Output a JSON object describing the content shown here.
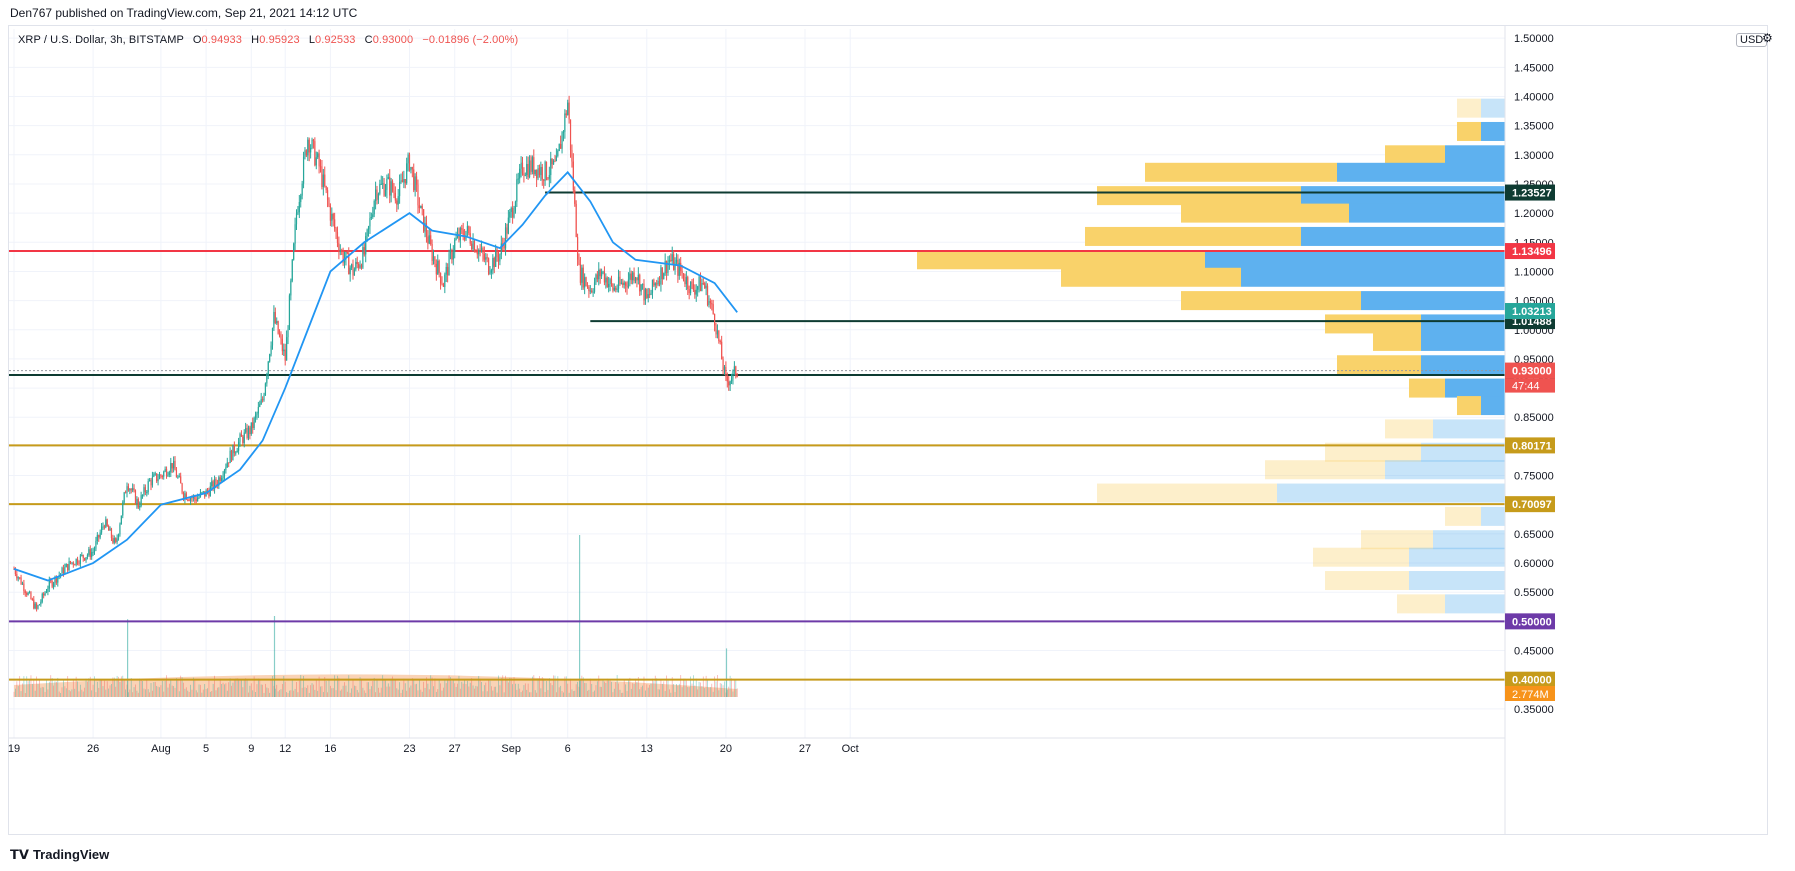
{
  "header": "Den767 published on TradingView.com, Sep 21, 2021 14:12 UTC",
  "legend": {
    "symbol": "XRP / U.S. Dollar, 3h, BITSTAMP",
    "open": "0.94933",
    "high": "0.95923",
    "low": "0.92533",
    "close": "0.93000",
    "change": "−0.01896 (−2.00%)"
  },
  "unit_label": "USD",
  "brand": "TradingView",
  "colors": {
    "up": "#26a69a",
    "down": "#ef5350",
    "ma": "#2196f3",
    "grid": "#f0f3fa",
    "vp_up": "#5eb1ef",
    "vp_down": "#f9d26a",
    "level_red": "#f23645",
    "level_gold": "#c69b1b",
    "level_purple": "#6d3aa8",
    "level_dark": "#0e3b32"
  },
  "chart_data": {
    "type": "candlestick",
    "symbol": "XRP / U.S. Dollar",
    "interval": "3h",
    "exchange": "BITSTAMP",
    "ylim": [
      0.3,
      1.55
    ],
    "y_ticks": [
      "1.50000",
      "1.45000",
      "1.40000",
      "1.35000",
      "1.30000",
      "1.25000",
      "1.20000",
      "1.15000",
      "1.10000",
      "1.05000",
      "1.00000",
      "0.95000",
      "0.90000",
      "0.85000",
      "0.80000",
      "0.75000",
      "0.70000",
      "0.65000",
      "0.60000",
      "0.55000",
      "0.50000",
      "0.45000",
      "0.40000",
      "0.35000"
    ],
    "x_ticks": [
      "19",
      "26",
      "Aug",
      "5",
      "9",
      "12",
      "16",
      "23",
      "27",
      "Sep",
      "6",
      "13",
      "20",
      "27",
      "Oct"
    ],
    "price_path": [
      {
        "date": "Jul 19",
        "price": 0.59
      },
      {
        "date": "Jul 21",
        "price": 0.52
      },
      {
        "date": "Jul 22",
        "price": 0.56
      },
      {
        "date": "Jul 24",
        "price": 0.6
      },
      {
        "date": "Jul 26",
        "price": 0.62
      },
      {
        "date": "Jul 27",
        "price": 0.67
      },
      {
        "date": "Jul 28",
        "price": 0.63
      },
      {
        "date": "Jul 29",
        "price": 0.74
      },
      {
        "date": "Jul 30",
        "price": 0.7
      },
      {
        "date": "Jul 31",
        "price": 0.74
      },
      {
        "date": "Aug 1",
        "price": 0.75
      },
      {
        "date": "Aug 2",
        "price": 0.77
      },
      {
        "date": "Aug 3",
        "price": 0.72
      },
      {
        "date": "Aug 4",
        "price": 0.71
      },
      {
        "date": "Aug 5",
        "price": 0.72
      },
      {
        "date": "Aug 6",
        "price": 0.74
      },
      {
        "date": "Aug 7",
        "price": 0.78
      },
      {
        "date": "Aug 8",
        "price": 0.81
      },
      {
        "date": "Aug 9",
        "price": 0.83
      },
      {
        "date": "Aug 10",
        "price": 0.88
      },
      {
        "date": "Aug 11",
        "price": 1.02
      },
      {
        "date": "Aug 12",
        "price": 0.95
      },
      {
        "date": "Aug 13",
        "price": 1.2
      },
      {
        "date": "Aug 14",
        "price": 1.33
      },
      {
        "date": "Aug 15",
        "price": 1.28
      },
      {
        "date": "Aug 16",
        "price": 1.2
      },
      {
        "date": "Aug 17",
        "price": 1.13
      },
      {
        "date": "Aug 18",
        "price": 1.1
      },
      {
        "date": "Aug 19",
        "price": 1.13
      },
      {
        "date": "Aug 20",
        "price": 1.24
      },
      {
        "date": "Aug 21",
        "price": 1.25
      },
      {
        "date": "Aug 22",
        "price": 1.23
      },
      {
        "date": "Aug 23",
        "price": 1.29
      },
      {
        "date": "Aug 24",
        "price": 1.2
      },
      {
        "date": "Aug 25",
        "price": 1.13
      },
      {
        "date": "Aug 26",
        "price": 1.08
      },
      {
        "date": "Aug 27",
        "price": 1.15
      },
      {
        "date": "Aug 28",
        "price": 1.17
      },
      {
        "date": "Aug 29",
        "price": 1.14
      },
      {
        "date": "Aug 30",
        "price": 1.11
      },
      {
        "date": "Aug 31",
        "price": 1.13
      },
      {
        "date": "Sep 1",
        "price": 1.2
      },
      {
        "date": "Sep 2",
        "price": 1.28
      },
      {
        "date": "Sep 3",
        "price": 1.28
      },
      {
        "date": "Sep 4",
        "price": 1.27
      },
      {
        "date": "Sep 5",
        "price": 1.28
      },
      {
        "date": "Sep 6",
        "price": 1.39
      },
      {
        "date": "Sep 7",
        "price": 1.1
      },
      {
        "date": "Sep 8",
        "price": 1.07
      },
      {
        "date": "Sep 9",
        "price": 1.1
      },
      {
        "date": "Sep 10",
        "price": 1.07
      },
      {
        "date": "Sep 11",
        "price": 1.08
      },
      {
        "date": "Sep 12",
        "price": 1.1
      },
      {
        "date": "Sep 13",
        "price": 1.05
      },
      {
        "date": "Sep 14",
        "price": 1.09
      },
      {
        "date": "Sep 15",
        "price": 1.12
      },
      {
        "date": "Sep 16",
        "price": 1.1
      },
      {
        "date": "Sep 17",
        "price": 1.07
      },
      {
        "date": "Sep 18",
        "price": 1.08
      },
      {
        "date": "Sep 19",
        "price": 1.02
      },
      {
        "date": "Sep 20",
        "price": 0.91
      },
      {
        "date": "Sep 21",
        "price": 0.93
      }
    ],
    "moving_average": [
      {
        "date": "Jul 19",
        "value": 0.59
      },
      {
        "date": "Jul 22",
        "value": 0.57
      },
      {
        "date": "Jul 26",
        "value": 0.6
      },
      {
        "date": "Jul 29",
        "value": 0.64
      },
      {
        "date": "Aug 1",
        "value": 0.7
      },
      {
        "date": "Aug 5",
        "value": 0.72
      },
      {
        "date": "Aug 8",
        "value": 0.76
      },
      {
        "date": "Aug 10",
        "value": 0.81
      },
      {
        "date": "Aug 12",
        "value": 0.9
      },
      {
        "date": "Aug 14",
        "value": 1.0
      },
      {
        "date": "Aug 16",
        "value": 1.1
      },
      {
        "date": "Aug 19",
        "value": 1.15
      },
      {
        "date": "Aug 23",
        "value": 1.2
      },
      {
        "date": "Aug 25",
        "value": 1.17
      },
      {
        "date": "Aug 28",
        "value": 1.16
      },
      {
        "date": "Aug 31",
        "value": 1.14
      },
      {
        "date": "Sep 2",
        "value": 1.18
      },
      {
        "date": "Sep 4",
        "value": 1.23
      },
      {
        "date": "Sep 6",
        "value": 1.27
      },
      {
        "date": "Sep 8",
        "value": 1.22
      },
      {
        "date": "Sep 10",
        "value": 1.15
      },
      {
        "date": "Sep 12",
        "value": 1.12
      },
      {
        "date": "Sep 16",
        "value": 1.11
      },
      {
        "date": "Sep 19",
        "value": 1.08
      },
      {
        "date": "Sep 21",
        "value": 1.03
      }
    ],
    "volume_spikes": [
      {
        "date": "Jul 29",
        "relative": 0.48
      },
      {
        "date": "Aug 11",
        "relative": 0.5
      },
      {
        "date": "Sep 7",
        "relative": 1.0
      },
      {
        "date": "Sep 20",
        "relative": 0.3
      }
    ],
    "volume_label": "2.774M",
    "countdown": "47:44",
    "horizontal_levels": [
      {
        "price": "1.13496",
        "color": "#f23645",
        "full": true
      },
      {
        "price": "1.23527",
        "color": "#0e3b32",
        "full": false
      },
      {
        "price": "1.01488",
        "color": "#0e3b32",
        "full": false
      },
      {
        "price": "0.92240",
        "color": "#0e3b32",
        "full": true
      },
      {
        "price": "0.80171",
        "color": "#c69b1b",
        "full": true
      },
      {
        "price": "0.70097",
        "color": "#c69b1b",
        "full": true
      },
      {
        "price": "0.50000",
        "color": "#6d3aa8",
        "full": true
      },
      {
        "price": "0.40000",
        "color": "#c69b1b",
        "full": true
      }
    ],
    "other_axis_labels": [
      {
        "price": "1.03213",
        "color": "#26a69a"
      },
      {
        "price": "0.93000",
        "color": "#ef5350"
      }
    ],
    "volume_profile": [
      {
        "price": 1.38,
        "up": 0.02,
        "down": 0.02,
        "active": false
      },
      {
        "price": 1.34,
        "up": 0.02,
        "down": 0.02,
        "active": true
      },
      {
        "price": 1.3,
        "up": 0.05,
        "down": 0.05,
        "active": true
      },
      {
        "price": 1.27,
        "up": 0.14,
        "down": 0.16,
        "active": true
      },
      {
        "price": 1.23,
        "up": 0.17,
        "down": 0.17,
        "active": true
      },
      {
        "price": 1.2,
        "up": 0.13,
        "down": 0.14,
        "active": true
      },
      {
        "price": 1.16,
        "up": 0.17,
        "down": 0.18,
        "active": true
      },
      {
        "price": 1.12,
        "up": 0.25,
        "down": 0.24,
        "active": true
      },
      {
        "price": 1.09,
        "up": 0.22,
        "down": 0.15,
        "active": true
      },
      {
        "price": 1.05,
        "up": 0.12,
        "down": 0.15,
        "active": true
      },
      {
        "price": 1.01,
        "up": 0.07,
        "down": 0.08,
        "active": true
      },
      {
        "price": 0.98,
        "up": 0.07,
        "down": 0.04,
        "active": true
      },
      {
        "price": 0.94,
        "up": 0.07,
        "down": 0.07,
        "active": true
      },
      {
        "price": 0.9,
        "up": 0.05,
        "down": 0.03,
        "active": true
      },
      {
        "price": 0.87,
        "up": 0.02,
        "down": 0.02,
        "active": true
      },
      {
        "price": 0.83,
        "up": 0.06,
        "down": 0.04,
        "active": false
      },
      {
        "price": 0.79,
        "up": 0.07,
        "down": 0.08,
        "active": false
      },
      {
        "price": 0.76,
        "up": 0.1,
        "down": 0.1,
        "active": false
      },
      {
        "price": 0.72,
        "up": 0.19,
        "down": 0.15,
        "active": false
      },
      {
        "price": 0.68,
        "up": 0.02,
        "down": 0.03,
        "active": false
      },
      {
        "price": 0.64,
        "up": 0.06,
        "down": 0.06,
        "active": false
      },
      {
        "price": 0.61,
        "up": 0.08,
        "down": 0.08,
        "active": false
      },
      {
        "price": 0.57,
        "up": 0.08,
        "down": 0.07,
        "active": false
      },
      {
        "price": 0.53,
        "up": 0.05,
        "down": 0.04,
        "active": false
      }
    ]
  }
}
